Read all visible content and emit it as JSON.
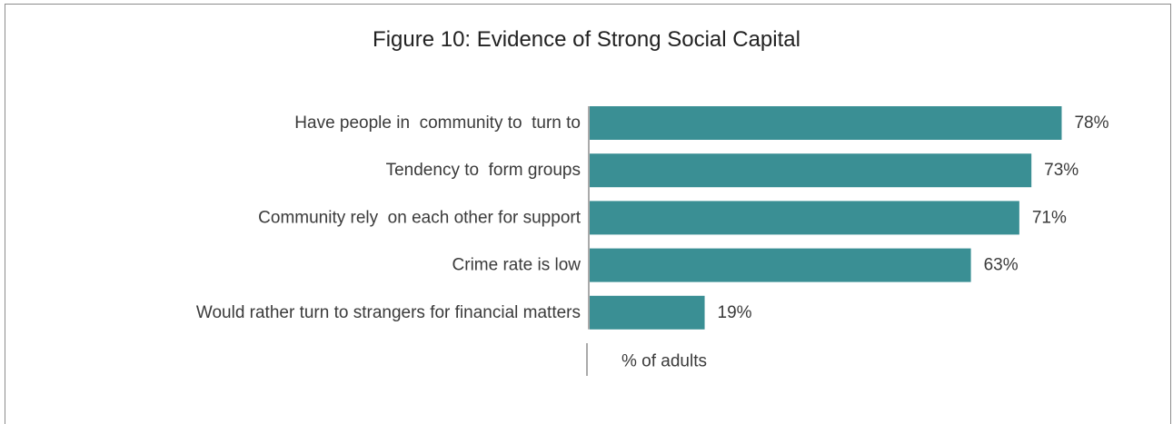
{
  "chart_data": {
    "type": "bar",
    "orientation": "horizontal",
    "title": "Figure 10: Evidence of Strong Social Capital",
    "categories": [
      "Have people in  community to  turn to",
      "Tendency to  form groups",
      "Community rely  on each other for support",
      "Crime rate is low",
      "Would rather turn to strangers for financial matters"
    ],
    "values": [
      78,
      73,
      71,
      63,
      19
    ],
    "value_labels": [
      "78%",
      "73%",
      "71%",
      "63%",
      "19%"
    ],
    "xlabel": "% of adults",
    "ylabel": "",
    "xlim": [
      0,
      100
    ],
    "grid": false,
    "legend": "none",
    "bar_color": "#3a8f94"
  }
}
